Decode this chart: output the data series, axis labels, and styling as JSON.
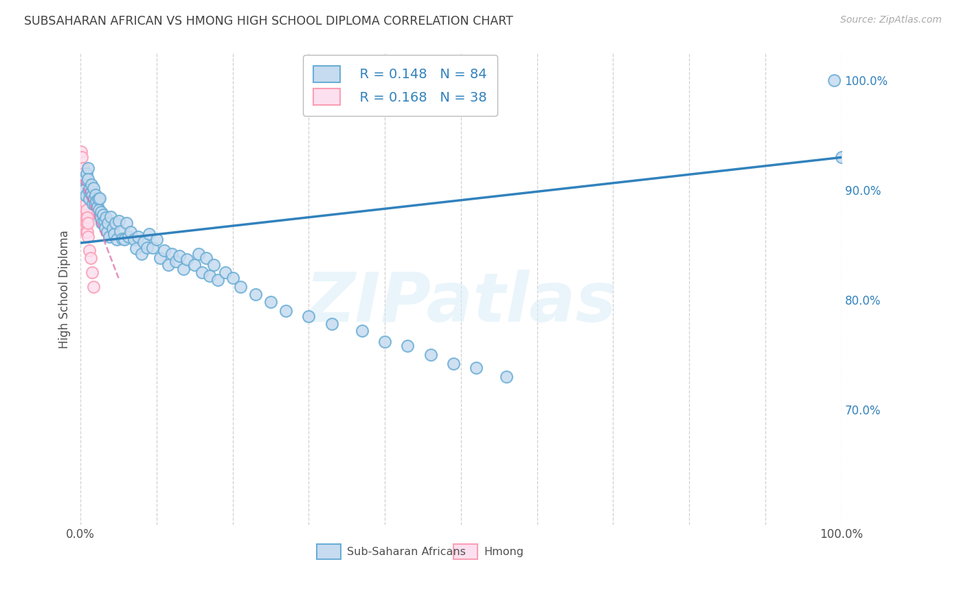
{
  "title": "SUBSAHARAN AFRICAN VS HMONG HIGH SCHOOL DIPLOMA CORRELATION CHART",
  "source": "Source: ZipAtlas.com",
  "ylabel": "High School Diploma",
  "legend_label1": "Sub-Saharan Africans",
  "legend_label2": "Hmong",
  "r_blue": "R = 0.148",
  "n_blue": "N = 84",
  "r_pink": "R = 0.168",
  "n_pink": "N = 38",
  "watermark": "ZIPatlas",
  "blue_face": "#c6dbef",
  "blue_edge": "#6baed6",
  "pink_face": "#fde0ef",
  "pink_edge": "#fa9fb5",
  "trend_blue": "#3182bd",
  "trend_pink": "#de77ae",
  "grid_color": "#d0d0d0",
  "bg_color": "#ffffff",
  "title_color": "#404040",
  "label_color": "#505050",
  "tick_color": "#3182bd",
  "xlim": [
    0.0,
    1.0
  ],
  "ylim": [
    0.595,
    1.025
  ],
  "yticks": [
    0.7,
    0.8,
    0.9,
    1.0
  ],
  "ytick_labels": [
    "70.0%",
    "80.0%",
    "90.0%",
    "100.0%"
  ],
  "blue_x": [
    0.004,
    0.005,
    0.007,
    0.008,
    0.01,
    0.01,
    0.011,
    0.012,
    0.013,
    0.014,
    0.015,
    0.016,
    0.017,
    0.018,
    0.019,
    0.02,
    0.021,
    0.022,
    0.023,
    0.024,
    0.025,
    0.026,
    0.027,
    0.028,
    0.03,
    0.031,
    0.032,
    0.033,
    0.035,
    0.036,
    0.038,
    0.04,
    0.042,
    0.044,
    0.046,
    0.048,
    0.05,
    0.052,
    0.055,
    0.058,
    0.06,
    0.063,
    0.066,
    0.07,
    0.073,
    0.076,
    0.08,
    0.083,
    0.087,
    0.09,
    0.095,
    0.1,
    0.105,
    0.11,
    0.115,
    0.12,
    0.125,
    0.13,
    0.135,
    0.14,
    0.15,
    0.155,
    0.16,
    0.165,
    0.17,
    0.175,
    0.18,
    0.19,
    0.2,
    0.21,
    0.23,
    0.25,
    0.27,
    0.3,
    0.33,
    0.37,
    0.4,
    0.43,
    0.46,
    0.49,
    0.52,
    0.56,
    0.99,
    1.0
  ],
  "blue_y": [
    0.9,
    0.91,
    0.895,
    0.915,
    0.92,
    0.91,
    0.9,
    0.892,
    0.898,
    0.905,
    0.895,
    0.888,
    0.902,
    0.893,
    0.887,
    0.896,
    0.89,
    0.885,
    0.892,
    0.882,
    0.893,
    0.875,
    0.88,
    0.87,
    0.878,
    0.872,
    0.866,
    0.875,
    0.862,
    0.87,
    0.858,
    0.876,
    0.865,
    0.86,
    0.87,
    0.855,
    0.872,
    0.863,
    0.856,
    0.855,
    0.87,
    0.858,
    0.862,
    0.855,
    0.847,
    0.858,
    0.842,
    0.853,
    0.848,
    0.86,
    0.848,
    0.855,
    0.838,
    0.845,
    0.832,
    0.842,
    0.835,
    0.84,
    0.828,
    0.837,
    0.832,
    0.842,
    0.825,
    0.838,
    0.822,
    0.832,
    0.818,
    0.825,
    0.82,
    0.812,
    0.805,
    0.798,
    0.79,
    0.785,
    0.778,
    0.772,
    0.762,
    0.758,
    0.75,
    0.742,
    0.738,
    0.73,
    1.0,
    0.93
  ],
  "pink_x": [
    0.001,
    0.001,
    0.002,
    0.002,
    0.002,
    0.002,
    0.003,
    0.003,
    0.003,
    0.003,
    0.003,
    0.004,
    0.004,
    0.004,
    0.004,
    0.005,
    0.005,
    0.005,
    0.005,
    0.005,
    0.005,
    0.006,
    0.006,
    0.006,
    0.006,
    0.007,
    0.007,
    0.007,
    0.008,
    0.008,
    0.009,
    0.009,
    0.01,
    0.01,
    0.012,
    0.013,
    0.015,
    0.017
  ],
  "pink_y": [
    0.935,
    0.92,
    0.93,
    0.918,
    0.905,
    0.912,
    0.92,
    0.907,
    0.915,
    0.9,
    0.895,
    0.908,
    0.898,
    0.89,
    0.882,
    0.91,
    0.9,
    0.892,
    0.885,
    0.875,
    0.87,
    0.9,
    0.89,
    0.878,
    0.865,
    0.888,
    0.875,
    0.862,
    0.882,
    0.87,
    0.875,
    0.862,
    0.87,
    0.858,
    0.845,
    0.838,
    0.825,
    0.812
  ],
  "trend_blue_x0": 0.0,
  "trend_blue_y0": 0.852,
  "trend_blue_x1": 1.0,
  "trend_blue_y1": 0.93,
  "trend_pink_x0": 0.0,
  "trend_pink_y0": 0.91,
  "trend_pink_x1": 0.05,
  "trend_pink_y1": 0.82
}
